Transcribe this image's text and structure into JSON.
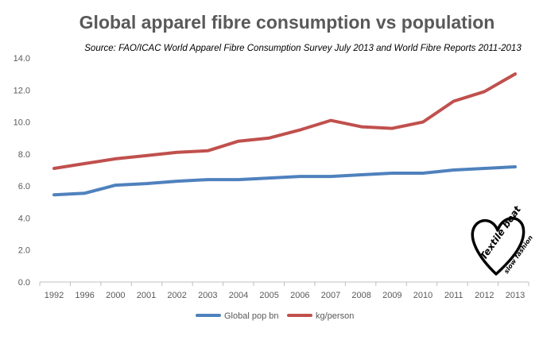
{
  "chart_data": {
    "type": "line",
    "title": "Global apparel fibre consumption vs population",
    "subtitle": "Source:  FAO/ICAC World Apparel Fibre Consumption Survey July 2013 and World Fibre Reports  2011-2013",
    "xlabel": "",
    "ylabel": "",
    "ylim": [
      0,
      14
    ],
    "ytick_step": 2,
    "ytick_labels": [
      "0.0",
      "2.0",
      "4.0",
      "6.0",
      "8.0",
      "10.0",
      "12.0",
      "14.0"
    ],
    "grid": false,
    "legend_position": "bottom",
    "categories": [
      "1992",
      "1996",
      "2000",
      "2001",
      "2002",
      "2003",
      "2004",
      "2005",
      "2006",
      "2007",
      "2008",
      "2009",
      "2010",
      "2011",
      "2012",
      "2013"
    ],
    "series": [
      {
        "name": "Global pop bn",
        "color": "#4f81bd",
        "values": [
          5.45,
          5.55,
          6.05,
          6.15,
          6.3,
          6.4,
          6.4,
          6.5,
          6.6,
          6.6,
          6.7,
          6.8,
          6.8,
          7.0,
          7.1,
          7.2
        ]
      },
      {
        "name": "kg/person",
        "color": "#c0504d",
        "values": [
          7.1,
          7.4,
          7.7,
          7.9,
          8.1,
          8.2,
          8.8,
          9.0,
          9.5,
          10.1,
          9.7,
          9.6,
          10.0,
          11.3,
          11.9,
          13.0
        ]
      }
    ]
  },
  "logo": {
    "text": "Textile beat",
    "tagline": "slow fashion",
    "icon": "heart-icon"
  }
}
